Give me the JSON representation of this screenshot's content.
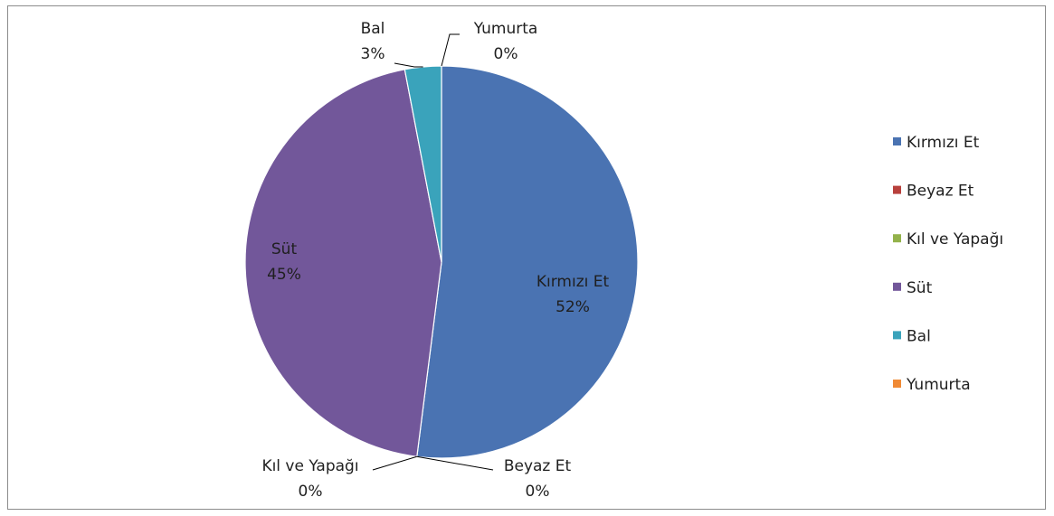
{
  "chart_data": {
    "type": "pie",
    "title": "",
    "categories": [
      "Kırmızı  Et",
      "Beyaz Et",
      "Kıl ve Yapağı",
      "Süt",
      "Bal",
      "Yumurta"
    ],
    "values": [
      52,
      0,
      0,
      45,
      3,
      0
    ],
    "value_labels": [
      "52%",
      "0%",
      "0%",
      "45%",
      "3%",
      "0%"
    ],
    "colors": [
      "#4a73b2",
      "#b8403c",
      "#93b24b",
      "#72579a",
      "#3aa3bb",
      "#f08a35"
    ],
    "legend": {
      "position": "right",
      "entries": [
        "Kırmızı  Et",
        "Beyaz Et",
        "Kıl ve Yapağı",
        "Süt",
        "Bal",
        "Yumurta"
      ]
    },
    "legend_position": "right"
  }
}
